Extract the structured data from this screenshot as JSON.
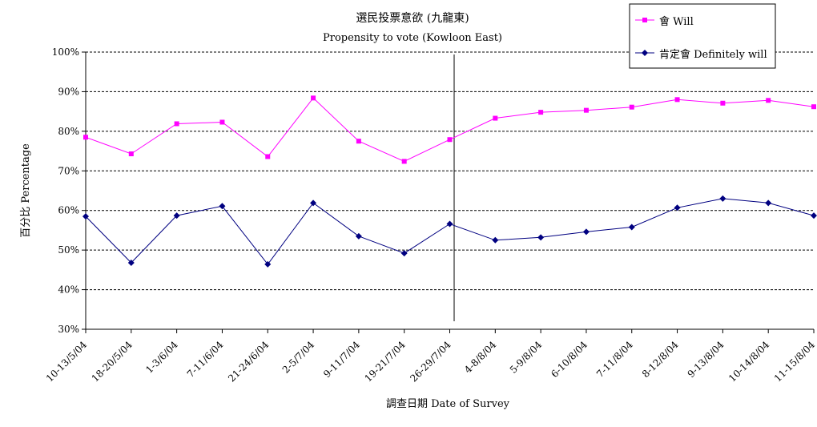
{
  "chart_data": {
    "type": "line",
    "title": "選民投票意欲 (九龍東)",
    "subtitle": "Propensity to vote (Kowloon East)",
    "ylabel": "百分比 Percentage",
    "xlabel": "調查日期 Date of Survey",
    "ylim": [
      30,
      100
    ],
    "yticks": [
      30,
      40,
      50,
      60,
      70,
      80,
      90,
      100
    ],
    "ytick_labels": [
      "30%",
      "40%",
      "50%",
      "60%",
      "70%",
      "80%",
      "90%",
      "100%"
    ],
    "grid": true,
    "legend_position": "top-right",
    "categories": [
      "10-13/5/04",
      "18-20/5/04",
      "1-3/6/04",
      "7-11/6/04",
      "21-24/6/04",
      "2-5/7/04",
      "9-11/7/04",
      "19-21/7/04",
      "26-29/7/04",
      "4-8/8/04",
      "5-9/8/04",
      "6-10/8/04",
      "7-11/8/04",
      "8-12/8/04",
      "9-13/8/04",
      "10-14/8/04",
      "11-15/8/04"
    ],
    "series": [
      {
        "name": "會 Will",
        "color": "#ff00ff",
        "marker": "square",
        "values": [
          78.5,
          74.3,
          81.9,
          82.3,
          73.6,
          88.4,
          77.5,
          72.4,
          77.9,
          83.3,
          84.8,
          85.3,
          86.1,
          88.0,
          87.1,
          87.8,
          86.2
        ]
      },
      {
        "name": "肯定會 Definitely will",
        "color": "#000080",
        "marker": "diamond",
        "values": [
          58.5,
          46.8,
          58.7,
          61.1,
          46.4,
          61.9,
          53.5,
          49.2,
          56.6,
          52.5,
          53.2,
          54.6,
          55.8,
          60.7,
          63.0,
          61.9,
          58.7
        ]
      }
    ],
    "divider_after_category": "26-29/7/04"
  }
}
